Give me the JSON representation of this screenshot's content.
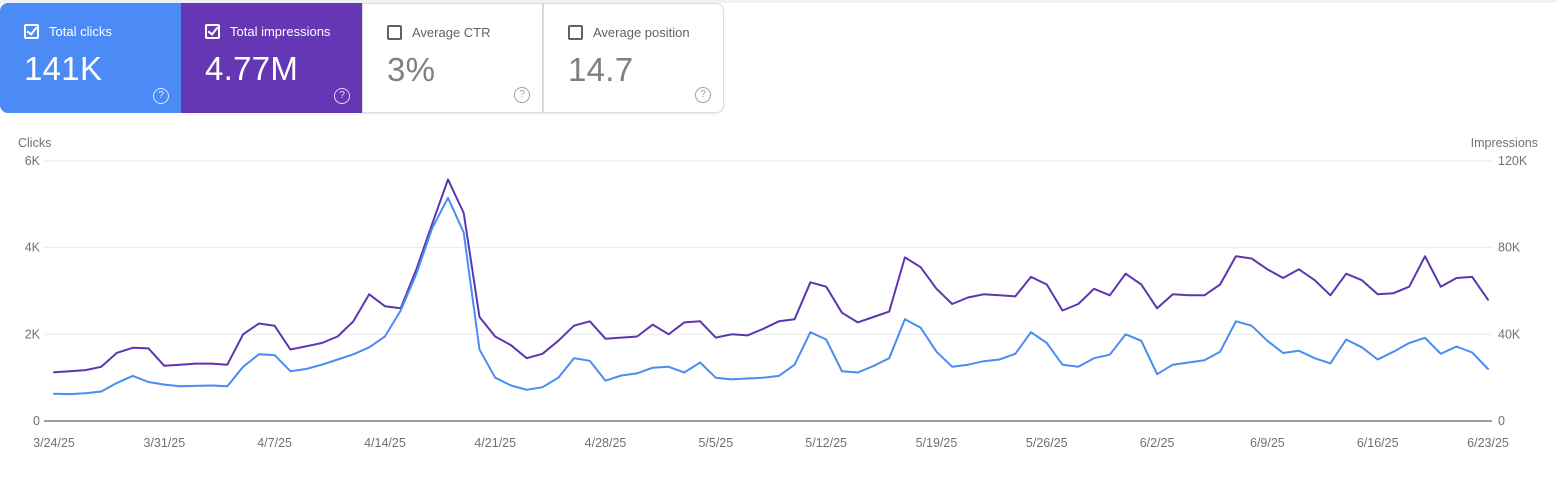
{
  "icons": {
    "help_glyph": "?"
  },
  "cards": [
    {
      "label": "Total clicks",
      "value": "141K",
      "selected": true,
      "bg": "#4c8bf5"
    },
    {
      "label": "Total impressions",
      "value": "4.77M",
      "selected": true,
      "bg": "#6637b5"
    },
    {
      "label": "Average CTR",
      "value": "3%",
      "selected": false,
      "bg": "#ffffff"
    },
    {
      "label": "Average position",
      "value": "14.7",
      "selected": false,
      "bg": "#ffffff"
    }
  ],
  "chart_data": {
    "type": "line",
    "grid": true,
    "x_tick_interval": 7,
    "x": [
      "3/24/25",
      "3/25/25",
      "3/26/25",
      "3/27/25",
      "3/28/25",
      "3/29/25",
      "3/30/25",
      "3/31/25",
      "4/1/25",
      "4/2/25",
      "4/3/25",
      "4/4/25",
      "4/5/25",
      "4/6/25",
      "4/7/25",
      "4/8/25",
      "4/9/25",
      "4/10/25",
      "4/11/25",
      "4/12/25",
      "4/13/25",
      "4/14/25",
      "4/15/25",
      "4/16/25",
      "4/17/25",
      "4/18/25",
      "4/19/25",
      "4/20/25",
      "4/21/25",
      "4/22/25",
      "4/23/25",
      "4/24/25",
      "4/25/25",
      "4/26/25",
      "4/27/25",
      "4/28/25",
      "4/29/25",
      "4/30/25",
      "5/1/25",
      "5/2/25",
      "5/3/25",
      "5/4/25",
      "5/5/25",
      "5/6/25",
      "5/7/25",
      "5/8/25",
      "5/9/25",
      "5/10/25",
      "5/11/25",
      "5/12/25",
      "5/13/25",
      "5/14/25",
      "5/15/25",
      "5/16/25",
      "5/17/25",
      "5/18/25",
      "5/19/25",
      "5/20/25",
      "5/21/25",
      "5/22/25",
      "5/23/25",
      "5/24/25",
      "5/25/25",
      "5/26/25",
      "5/27/25",
      "5/28/25",
      "5/29/25",
      "5/30/25",
      "5/31/25",
      "6/1/25",
      "6/2/25",
      "6/3/25",
      "6/4/25",
      "6/5/25",
      "6/6/25",
      "6/7/25",
      "6/8/25",
      "6/9/25",
      "6/10/25",
      "6/11/25",
      "6/12/25",
      "6/13/25",
      "6/14/25",
      "6/15/25",
      "6/16/25",
      "6/17/25",
      "6/18/25",
      "6/19/25",
      "6/20/25",
      "6/21/25",
      "6/22/25",
      "6/23/25"
    ],
    "series": [
      {
        "name": "Impressions",
        "axis": "right",
        "color": "#5e35b1",
        "values": [
          22500,
          23000,
          23500,
          25000,
          31500,
          33800,
          33500,
          25500,
          26000,
          26500,
          26500,
          26000,
          40000,
          45000,
          44000,
          33000,
          34500,
          36000,
          39000,
          46000,
          58500,
          53000,
          52000,
          70000,
          91000,
          111500,
          96000,
          48000,
          39000,
          35000,
          29000,
          31000,
          37000,
          44000,
          46000,
          38000,
          38500,
          39000,
          44500,
          40000,
          45500,
          46000,
          38500,
          40000,
          39500,
          42500,
          46000,
          47000,
          64000,
          62000,
          50000,
          45500,
          48000,
          50500,
          75500,
          71000,
          61000,
          54000,
          57000,
          58500,
          58000,
          57500,
          66500,
          63000,
          51000,
          54000,
          61000,
          58000,
          68000,
          63000,
          52000,
          58500,
          58000,
          58000,
          63000,
          76000,
          75000,
          70000,
          66000,
          70000,
          65000,
          58000,
          68000,
          65000,
          58500,
          59000,
          62000,
          76000,
          62000,
          66000,
          66500,
          56000
        ]
      },
      {
        "name": "Clicks",
        "axis": "left",
        "color": "#4a8cf6",
        "values": [
          630,
          620,
          640,
          680,
          880,
          1040,
          900,
          840,
          800,
          810,
          820,
          800,
          1250,
          1540,
          1520,
          1150,
          1200,
          1300,
          1420,
          1540,
          1700,
          1950,
          2550,
          3400,
          4450,
          5150,
          4350,
          1650,
          1000,
          820,
          720,
          780,
          1000,
          1450,
          1390,
          930,
          1050,
          1100,
          1230,
          1250,
          1120,
          1350,
          1000,
          960,
          980,
          1000,
          1040,
          1300,
          2050,
          1880,
          1150,
          1120,
          1270,
          1450,
          2350,
          2150,
          1600,
          1250,
          1300,
          1380,
          1420,
          1550,
          2050,
          1800,
          1300,
          1250,
          1450,
          1530,
          2000,
          1850,
          1080,
          1300,
          1350,
          1400,
          1600,
          2300,
          2200,
          1850,
          1570,
          1620,
          1450,
          1330,
          1880,
          1700,
          1420,
          1600,
          1800,
          1920,
          1550,
          1720,
          1580,
          1200
        ]
      }
    ],
    "left_axis": {
      "label": "Clicks",
      "ticks": [
        "0",
        "2K",
        "4K",
        "6K"
      ],
      "max": 6000
    },
    "right_axis": {
      "label": "Impressions",
      "ticks": [
        "0",
        "40K",
        "80K",
        "120K"
      ],
      "max": 120000
    },
    "colors": {
      "grid": "#e8eaec",
      "axis_line": "#9aa0a6",
      "tick_text": "#6e7276"
    }
  }
}
